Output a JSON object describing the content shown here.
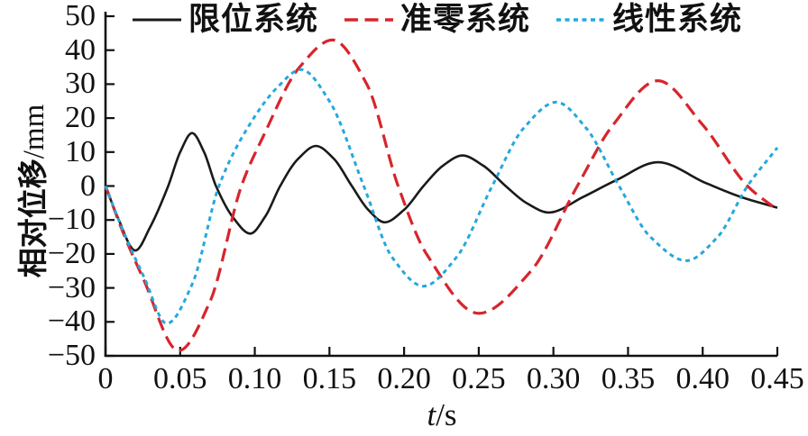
{
  "chart_data": {
    "type": "line",
    "title": "",
    "xlabel": {
      "symbol": "t",
      "unit": "/s"
    },
    "ylabel": {
      "symbol": "相对位移",
      "unit": "/mm"
    },
    "xlim": [
      0,
      0.45
    ],
    "ylim": [
      -50,
      50
    ],
    "grid": false,
    "legend_position": "top",
    "xticks": {
      "values": [
        0,
        0.05,
        0.1,
        0.15,
        0.2,
        0.25,
        0.3,
        0.35,
        0.4,
        0.45
      ],
      "labels": [
        "0",
        "0.05",
        "0.10",
        "0.15",
        "0.20",
        "0.25",
        "0.30",
        "0.35",
        "0.40",
        "0.45"
      ]
    },
    "yticks": {
      "values": [
        50,
        40,
        30,
        20,
        10,
        0,
        -10,
        -20,
        -30,
        -40,
        -50
      ],
      "labels": [
        "50",
        "40",
        "30",
        "20",
        "10",
        "0",
        "−10",
        "−20",
        "−30",
        "−40",
        "−50"
      ]
    },
    "series": [
      {
        "name": "限位系统",
        "color": "#1a1a1a",
        "style": "solid",
        "points": [
          [
            0,
            0
          ],
          [
            0.008,
            -9
          ],
          [
            0.02,
            -19
          ],
          [
            0.03,
            -12
          ],
          [
            0.042,
            0
          ],
          [
            0.05,
            10
          ],
          [
            0.058,
            15.6
          ],
          [
            0.066,
            10
          ],
          [
            0.074,
            0
          ],
          [
            0.085,
            -9
          ],
          [
            0.097,
            -14
          ],
          [
            0.107,
            -9
          ],
          [
            0.117,
            0
          ],
          [
            0.129,
            8
          ],
          [
            0.141,
            11.8
          ],
          [
            0.153,
            8
          ],
          [
            0.165,
            0
          ],
          [
            0.176,
            -7
          ],
          [
            0.187,
            -10.7
          ],
          [
            0.2,
            -7
          ],
          [
            0.213,
            0
          ],
          [
            0.226,
            6
          ],
          [
            0.239,
            9
          ],
          [
            0.253,
            6
          ],
          [
            0.268,
            0
          ],
          [
            0.282,
            -5
          ],
          [
            0.297,
            -7.8
          ],
          [
            0.32,
            -3.2
          ],
          [
            0.342,
            1.7
          ],
          [
            0.37,
            7
          ],
          [
            0.402,
            0.9
          ],
          [
            0.426,
            -3.3
          ],
          [
            0.45,
            -6.4
          ]
        ]
      },
      {
        "name": "准零系统",
        "color": "#d7252c",
        "style": "dashed",
        "points": [
          [
            0,
            0
          ],
          [
            0.013,
            -15
          ],
          [
            0.025,
            -27
          ],
          [
            0.049,
            -48.5
          ],
          [
            0.07,
            -34
          ],
          [
            0.091,
            0
          ],
          [
            0.105,
            14
          ],
          [
            0.13,
            35
          ],
          [
            0.152,
            43
          ],
          [
            0.175,
            30
          ],
          [
            0.196,
            0
          ],
          [
            0.215,
            -20
          ],
          [
            0.25,
            -37.5
          ],
          [
            0.285,
            -25
          ],
          [
            0.316,
            0
          ],
          [
            0.34,
            18
          ],
          [
            0.37,
            31
          ],
          [
            0.4,
            18
          ],
          [
            0.43,
            0
          ],
          [
            0.45,
            -7
          ]
        ]
      },
      {
        "name": "线性系统",
        "color": "#25a8dc",
        "style": "dotted",
        "points": [
          [
            0,
            0
          ],
          [
            0.013,
            -14.5
          ],
          [
            0.026,
            -27
          ],
          [
            0.041,
            -40.5
          ],
          [
            0.058,
            -29
          ],
          [
            0.076,
            0
          ],
          [
            0.095,
            17
          ],
          [
            0.115,
            29
          ],
          [
            0.131,
            34.3
          ],
          [
            0.15,
            25
          ],
          [
            0.173,
            0
          ],
          [
            0.192,
            -21
          ],
          [
            0.213,
            -29.5
          ],
          [
            0.235,
            -21
          ],
          [
            0.259,
            0
          ],
          [
            0.28,
            17
          ],
          [
            0.302,
            24.7
          ],
          [
            0.322,
            17
          ],
          [
            0.344,
            0
          ],
          [
            0.365,
            -15
          ],
          [
            0.389,
            -22
          ],
          [
            0.41,
            -15
          ],
          [
            0.43,
            0
          ],
          [
            0.45,
            11.3
          ]
        ]
      }
    ]
  }
}
